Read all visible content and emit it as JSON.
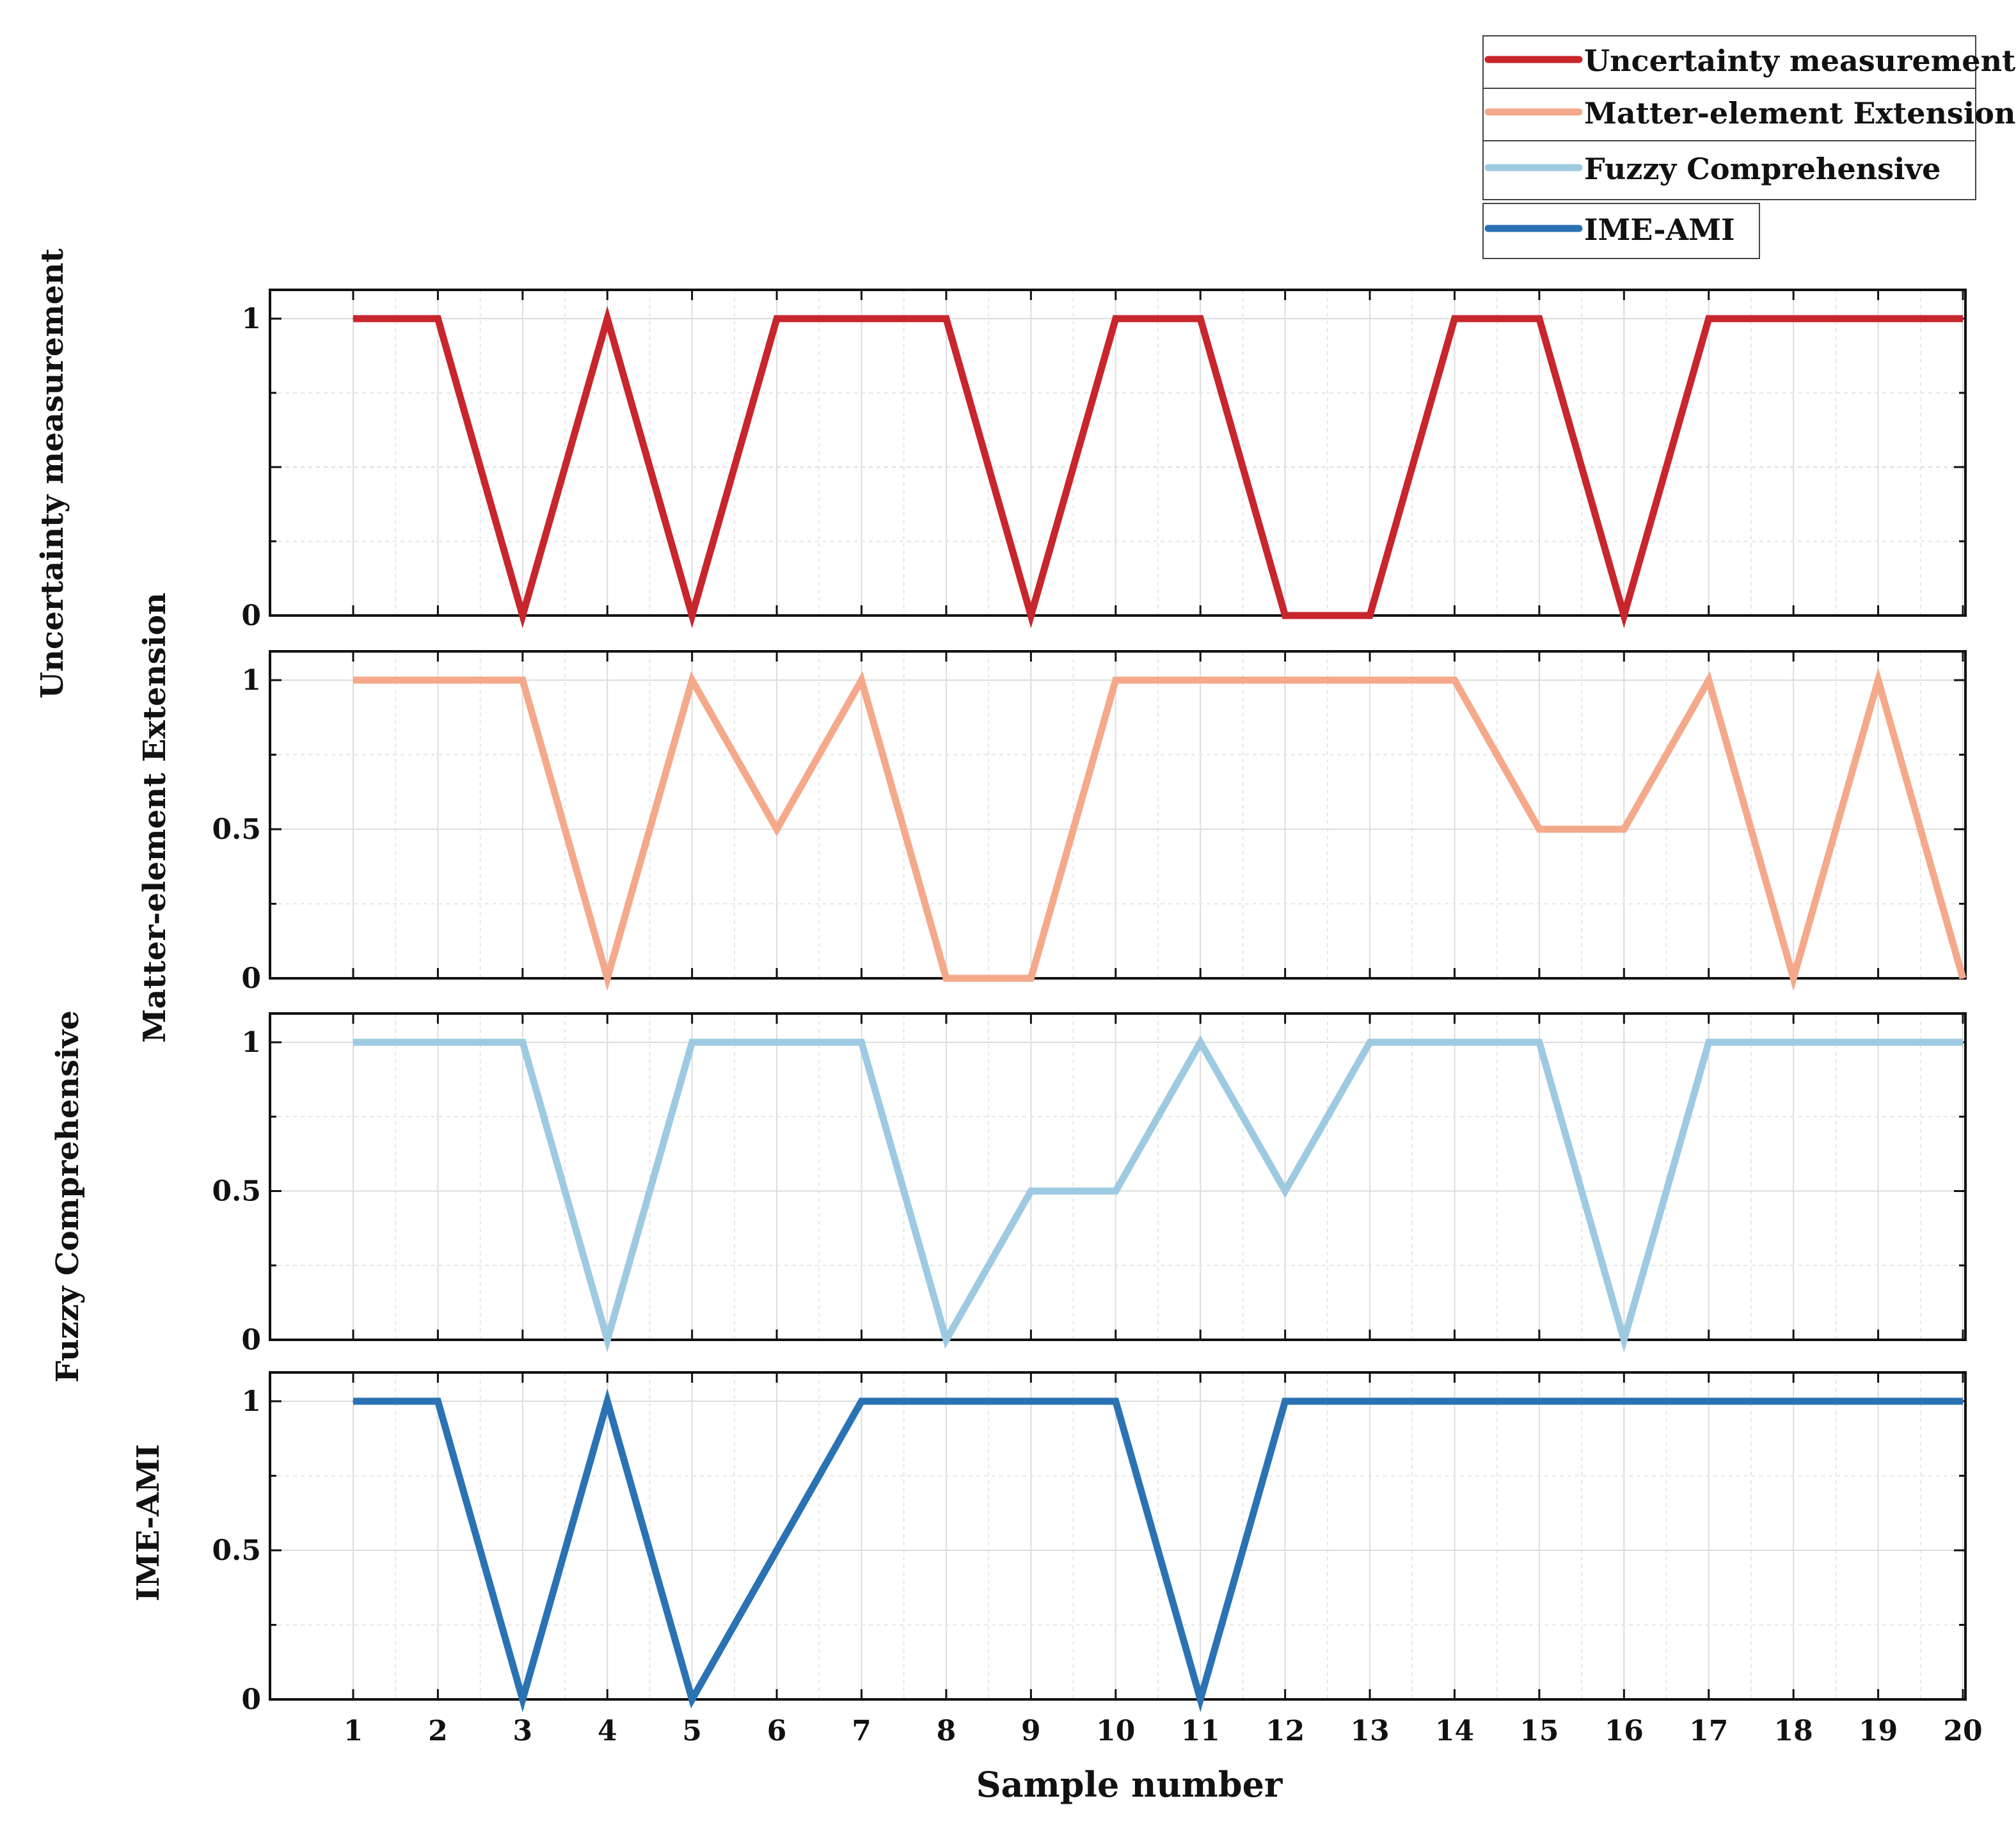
{
  "chart_data": {
    "type": "line",
    "xlabel": "Sample number",
    "x": [
      1,
      2,
      3,
      4,
      5,
      6,
      7,
      8,
      9,
      10,
      11,
      12,
      13,
      14,
      15,
      16,
      17,
      18,
      19,
      20
    ],
    "xticks": [
      "1",
      "2",
      "3",
      "4",
      "5",
      "6",
      "7",
      "8",
      "9",
      "10",
      "11",
      "12",
      "13",
      "14",
      "15",
      "16",
      "17",
      "18",
      "19",
      "20"
    ],
    "legend": {
      "placement": "top-right",
      "entries": [
        "Uncertainty measurement",
        "Matter-element Extension",
        "Fuzzy Comprehensive",
        "IME-AMI"
      ]
    },
    "series": [
      {
        "name": "Uncertainty measurement",
        "ylabel": "Uncertainty measurement",
        "color": "#c8252c",
        "ylim": [
          0,
          1
        ],
        "yticks": [
          "1",
          "0"
        ],
        "values": [
          1,
          1,
          0,
          1,
          0,
          1,
          1,
          1,
          0,
          1,
          1,
          0,
          0,
          1,
          1,
          0,
          1,
          1,
          1,
          1
        ]
      },
      {
        "name": "Matter-element Extension",
        "ylabel": "Matter-element Extension",
        "color": "#f4a98a",
        "ylim": [
          0,
          1.1
        ],
        "yticks": [
          "1",
          "0.5",
          "0"
        ],
        "values": [
          1,
          1,
          1,
          0,
          1,
          0.5,
          1,
          0,
          0,
          1,
          1,
          1,
          1,
          1,
          0.5,
          0.5,
          1,
          0,
          1,
          0
        ]
      },
      {
        "name": "Fuzzy Comprehensive",
        "ylabel": "Fuzzy Comprehensive",
        "color": "#9ecae1",
        "ylim": [
          0,
          1.1
        ],
        "yticks": [
          "1",
          "0.5",
          "0"
        ],
        "values": [
          1,
          1,
          1,
          0,
          1,
          1,
          1,
          0,
          0.5,
          0.5,
          1,
          0.5,
          1,
          1,
          1,
          0,
          1,
          1,
          1,
          1
        ]
      },
      {
        "name": "IME-AMI",
        "ylabel": "IME-AMI",
        "color": "#2b72b4",
        "ylim": [
          0,
          1.1
        ],
        "yticks": [
          "1",
          "0.5",
          "0"
        ],
        "values": [
          1,
          1,
          0,
          1,
          0,
          0.5,
          1,
          1,
          1,
          1,
          0,
          1,
          1,
          1,
          1,
          1,
          1,
          1,
          1,
          1
        ]
      }
    ]
  }
}
